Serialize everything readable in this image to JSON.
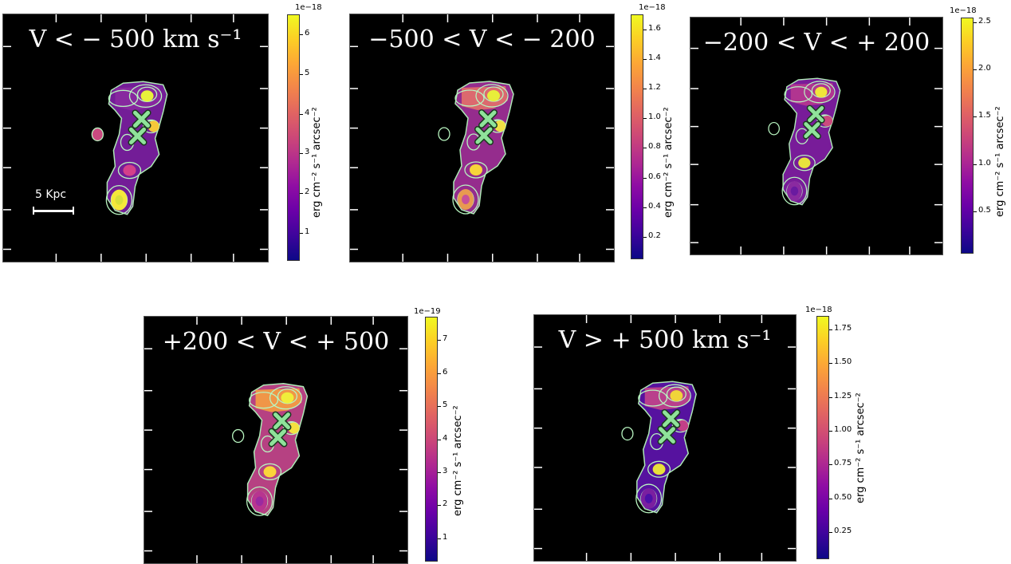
{
  "panels": [
    {
      "title": "V < − 500 km s⁻¹",
      "exponent": "1e−18",
      "ticks": [
        "1",
        "2",
        "3",
        "4",
        "5",
        "6"
      ],
      "vmin": 0.3,
      "vmax": 6.5,
      "tickvals": [
        1,
        2,
        3,
        4,
        5,
        6
      ]
    },
    {
      "title": "−500 < V < − 200",
      "exponent": "1e−18",
      "ticks": [
        "0.2",
        "0.4",
        "0.6",
        "0.8",
        "1.0",
        "1.2",
        "1.4",
        "1.6"
      ],
      "vmin": 0.05,
      "vmax": 1.7,
      "tickvals": [
        0.2,
        0.4,
        0.6,
        0.8,
        1.0,
        1.2,
        1.4,
        1.6
      ]
    },
    {
      "title": "−200 < V < + 200",
      "exponent": "1e−18",
      "ticks": [
        "0.5",
        "1.0",
        "1.5",
        "2.0",
        "2.5"
      ],
      "vmin": 0.05,
      "vmax": 2.55,
      "tickvals": [
        0.5,
        1.0,
        1.5,
        2.0,
        2.5
      ]
    },
    {
      "title": "+200 < V < + 500",
      "exponent": "1e−19",
      "ticks": [
        "1",
        "2",
        "3",
        "4",
        "5",
        "6",
        "7"
      ],
      "vmin": 0.3,
      "vmax": 7.7,
      "tickvals": [
        1,
        2,
        3,
        4,
        5,
        6,
        7
      ]
    },
    {
      "title": "V > + 500 km s⁻¹",
      "exponent": "1e−18",
      "ticks": [
        "0.25",
        "0.50",
        "0.75",
        "1.00",
        "1.25",
        "1.50",
        "1.75"
      ],
      "vmin": 0.05,
      "vmax": 1.85,
      "tickvals": [
        0.25,
        0.5,
        0.75,
        1.0,
        1.25,
        1.5,
        1.75
      ]
    }
  ],
  "colorbar_unit": "erg cm⁻² s⁻¹ arcsec⁻²",
  "scalebar_label": "5 Kpc",
  "chart_data": {
    "type": "heatmap",
    "colormap": "plasma",
    "marker_color": "#8fe39a",
    "contour_color": "#b8f5c0",
    "background": "#000000"
  }
}
